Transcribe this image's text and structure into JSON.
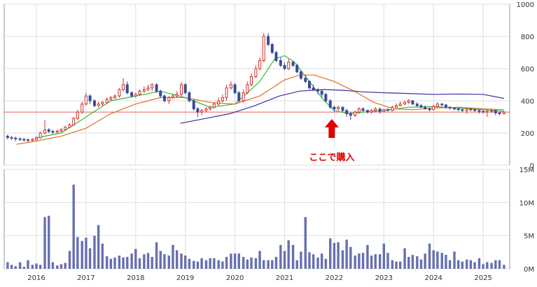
{
  "chart_data": [
    {
      "type": "candlestick",
      "panel": "price",
      "title": "",
      "ylim": [
        0,
        1000
      ],
      "y_ticks": [
        "1000",
        "800",
        "600",
        "400",
        "200",
        "0"
      ],
      "grid": true,
      "reference_line": {
        "y": 330,
        "color": "#e06060"
      },
      "annotation": {
        "text": "ここで購入",
        "x": 2021.95,
        "arrow": "up",
        "color": "#e00000"
      },
      "up_color": "#d03030",
      "down_color": "#3b4a9a",
      "x": [
        2015.42,
        2015.5,
        2015.58,
        2015.67,
        2015.75,
        2015.83,
        2015.92,
        2016.0,
        2016.08,
        2016.17,
        2016.25,
        2016.33,
        2016.42,
        2016.5,
        2016.58,
        2016.67,
        2016.75,
        2016.83,
        2016.92,
        2017.0,
        2017.08,
        2017.17,
        2017.25,
        2017.33,
        2017.42,
        2017.5,
        2017.58,
        2017.67,
        2017.75,
        2017.83,
        2017.92,
        2018.0,
        2018.08,
        2018.17,
        2018.25,
        2018.33,
        2018.42,
        2018.5,
        2018.58,
        2018.67,
        2018.75,
        2018.83,
        2018.92,
        2019.0,
        2019.08,
        2019.17,
        2019.25,
        2019.33,
        2019.42,
        2019.5,
        2019.58,
        2019.67,
        2019.75,
        2019.83,
        2019.92,
        2020.0,
        2020.08,
        2020.17,
        2020.25,
        2020.33,
        2020.42,
        2020.5,
        2020.58,
        2020.67,
        2020.75,
        2020.83,
        2020.92,
        2021.0,
        2021.08,
        2021.17,
        2021.25,
        2021.33,
        2021.42,
        2021.5,
        2021.58,
        2021.67,
        2021.75,
        2021.83,
        2021.92,
        2022.0,
        2022.08,
        2022.17,
        2022.25,
        2022.33,
        2022.42,
        2022.5,
        2022.58,
        2022.67,
        2022.75,
        2022.83,
        2022.92,
        2023.0,
        2023.08,
        2023.17,
        2023.25,
        2023.33,
        2023.42,
        2023.5,
        2023.58,
        2023.67,
        2023.75,
        2023.83,
        2023.92,
        2024.0,
        2024.08,
        2024.17,
        2024.25,
        2024.33,
        2024.42,
        2024.5,
        2024.58,
        2024.67,
        2024.75,
        2024.83,
        2024.92,
        2025.0,
        2025.08,
        2025.17,
        2025.25,
        2025.33,
        2025.42
      ],
      "open": [
        180,
        172,
        168,
        164,
        160,
        158,
        155,
        160,
        170,
        200,
        220,
        210,
        205,
        212,
        220,
        235,
        250,
        290,
        330,
        380,
        430,
        400,
        370,
        380,
        390,
        410,
        420,
        430,
        470,
        500,
        450,
        430,
        440,
        460,
        470,
        480,
        500,
        460,
        430,
        400,
        420,
        430,
        440,
        500,
        450,
        400,
        350,
        330,
        340,
        350,
        360,
        380,
        400,
        420,
        480,
        500,
        450,
        400,
        450,
        500,
        550,
        600,
        650,
        800,
        750,
        700,
        650,
        620,
        600,
        640,
        620,
        580,
        540,
        520,
        480,
        470,
        460,
        440,
        400,
        360,
        350,
        360,
        340,
        320,
        310,
        330,
        350,
        340,
        330,
        340,
        350,
        335,
        345,
        340,
        360,
        370,
        380,
        390,
        400,
        380,
        370,
        360,
        350,
        345,
        365,
        380,
        375,
        360,
        355,
        350,
        345,
        340,
        350,
        345,
        340,
        335,
        330,
        335,
        340,
        325,
        320
      ],
      "close": [
        172,
        168,
        164,
        160,
        158,
        155,
        160,
        170,
        200,
        220,
        210,
        205,
        212,
        220,
        235,
        250,
        290,
        330,
        380,
        430,
        400,
        370,
        380,
        390,
        410,
        420,
        430,
        470,
        500,
        450,
        430,
        440,
        460,
        470,
        480,
        500,
        460,
        430,
        400,
        420,
        430,
        440,
        500,
        450,
        400,
        350,
        330,
        340,
        350,
        360,
        380,
        400,
        420,
        480,
        500,
        450,
        400,
        450,
        500,
        550,
        600,
        650,
        800,
        750,
        700,
        650,
        620,
        600,
        640,
        620,
        580,
        540,
        520,
        480,
        470,
        460,
        440,
        400,
        360,
        350,
        360,
        340,
        320,
        310,
        330,
        350,
        340,
        330,
        340,
        350,
        335,
        345,
        340,
        360,
        370,
        380,
        390,
        400,
        380,
        370,
        360,
        350,
        345,
        365,
        380,
        375,
        360,
        355,
        350,
        345,
        340,
        350,
        345,
        340,
        335,
        330,
        335,
        340,
        325,
        320,
        330
      ],
      "high": [
        190,
        182,
        178,
        172,
        170,
        165,
        168,
        180,
        210,
        280,
        230,
        220,
        220,
        230,
        245,
        260,
        300,
        345,
        395,
        450,
        440,
        410,
        395,
        400,
        420,
        430,
        440,
        480,
        540,
        520,
        460,
        450,
        470,
        490,
        500,
        510,
        510,
        470,
        440,
        430,
        440,
        460,
        515,
        510,
        460,
        410,
        360,
        350,
        360,
        370,
        390,
        420,
        440,
        500,
        520,
        510,
        460,
        470,
        520,
        570,
        620,
        670,
        820,
        820,
        760,
        710,
        670,
        640,
        660,
        650,
        630,
        590,
        560,
        530,
        500,
        480,
        470,
        450,
        410,
        370,
        370,
        365,
        350,
        330,
        340,
        360,
        360,
        345,
        350,
        360,
        355,
        350,
        355,
        370,
        385,
        395,
        400,
        410,
        405,
        390,
        380,
        370,
        360,
        375,
        390,
        385,
        375,
        365,
        360,
        355,
        350,
        355,
        355,
        350,
        345,
        340,
        345,
        350,
        345,
        330,
        335
      ],
      "low": [
        160,
        158,
        150,
        150,
        148,
        145,
        150,
        155,
        165,
        190,
        200,
        195,
        200,
        205,
        215,
        230,
        245,
        280,
        320,
        370,
        380,
        360,
        360,
        370,
        380,
        400,
        410,
        420,
        460,
        440,
        420,
        420,
        430,
        450,
        460,
        460,
        450,
        420,
        390,
        380,
        410,
        420,
        430,
        440,
        390,
        340,
        300,
        310,
        330,
        340,
        350,
        370,
        390,
        400,
        470,
        440,
        390,
        390,
        440,
        490,
        540,
        590,
        640,
        740,
        690,
        640,
        610,
        590,
        590,
        610,
        570,
        530,
        510,
        470,
        460,
        440,
        420,
        390,
        350,
        330,
        340,
        330,
        300,
        280,
        300,
        320,
        330,
        320,
        320,
        330,
        320,
        330,
        335,
        335,
        355,
        365,
        375,
        380,
        375,
        360,
        355,
        345,
        335,
        340,
        360,
        365,
        350,
        345,
        340,
        335,
        330,
        320,
        335,
        330,
        320,
        320,
        300,
        325,
        310,
        310,
        315
      ]
    },
    {
      "type": "line",
      "panel": "price",
      "series": [
        {
          "color": "#33bb33",
          "x": [
            2016.0,
            2016.5,
            2017.0,
            2017.5,
            2018.0,
            2018.5,
            2019.0,
            2019.5,
            2020.0,
            2020.5,
            2020.8,
            2021.0,
            2021.2,
            2021.4,
            2021.6,
            2021.8,
            2022.0,
            2022.3,
            2022.6,
            2023.0,
            2023.5,
            2024.0,
            2024.5,
            2025.0,
            2025.42
          ],
          "values": [
            170,
            200,
            300,
            400,
            430,
            460,
            420,
            360,
            380,
            520,
            660,
            680,
            640,
            560,
            480,
            400,
            340,
            320,
            330,
            340,
            360,
            365,
            355,
            345,
            335
          ]
        },
        {
          "color": "#e07020",
          "x": [
            2015.6,
            2016.0,
            2016.5,
            2017.0,
            2017.5,
            2018.0,
            2018.5,
            2019.0,
            2019.5,
            2020.0,
            2020.5,
            2021.0,
            2021.3,
            2021.6,
            2022.0,
            2022.4,
            2022.8,
            2023.2,
            2023.6,
            2024.0,
            2024.5,
            2025.0,
            2025.42
          ],
          "values": [
            130,
            150,
            180,
            230,
            320,
            380,
            420,
            420,
            390,
            380,
            430,
            530,
            560,
            560,
            520,
            460,
            390,
            350,
            345,
            355,
            360,
            350,
            345
          ]
        },
        {
          "color": "#3a2fa0",
          "x": [
            2018.9,
            2019.4,
            2019.9,
            2020.4,
            2020.9,
            2021.3,
            2021.8,
            2022.2,
            2022.6,
            2023.0,
            2023.5,
            2024.0,
            2024.5,
            2025.0,
            2025.42
          ],
          "values": [
            260,
            290,
            320,
            370,
            430,
            460,
            470,
            465,
            455,
            450,
            445,
            440,
            442,
            440,
            415
          ]
        }
      ]
    },
    {
      "type": "bar",
      "panel": "volume",
      "ylim": [
        0,
        15000000
      ],
      "y_ticks": [
        "15M",
        "10M",
        "5M",
        "0M"
      ],
      "x_ticks": [
        "2016",
        "2017",
        "2018",
        "2019",
        "2020",
        "2021",
        "2022",
        "2023",
        "2024",
        "2025"
      ],
      "color": "#6670b0",
      "values": [
        1000000,
        600000,
        400000,
        1000000,
        300000,
        1300000,
        600000,
        800000,
        600000,
        7800000,
        8000000,
        1000000,
        500000,
        700000,
        900000,
        2700000,
        12700000,
        4800000,
        4200000,
        4700000,
        3100000,
        5000000,
        6600000,
        3800000,
        1900000,
        1500000,
        1700000,
        2000000,
        1700000,
        1800000,
        2300000,
        3000000,
        1600000,
        2200000,
        2400000,
        1800000,
        4000000,
        2700000,
        2200000,
        2000000,
        3600000,
        2800000,
        2300000,
        2000000,
        1500000,
        1200000,
        1100000,
        1600000,
        1300000,
        1600000,
        1600000,
        1300000,
        1100000,
        1800000,
        2300000,
        2300000,
        2300000,
        1800000,
        1400000,
        1700000,
        1600000,
        2700000,
        1300000,
        1300000,
        1300000,
        1800000,
        3600000,
        2700000,
        4300000,
        3600000,
        1300000,
        2600000,
        7800000,
        2500000,
        2200000,
        1700000,
        2300000,
        1500000,
        4600000,
        3900000,
        4000000,
        2800000,
        4400000,
        3300000,
        2000000,
        2300000,
        2400000,
        3600000,
        2000000,
        2200000,
        2200000,
        3800000,
        2400000,
        1300000,
        1100000,
        1100000,
        3100000,
        1800000,
        2100000,
        1900000,
        1400000,
        2300000,
        3800000,
        2800000,
        2600000,
        2400000,
        2100000,
        1300000,
        2600000,
        1300000,
        1100000,
        1400000,
        1300000,
        1000000,
        1600000,
        700000,
        1000000,
        900000,
        1300000,
        1300000,
        600000
      ]
    }
  ]
}
